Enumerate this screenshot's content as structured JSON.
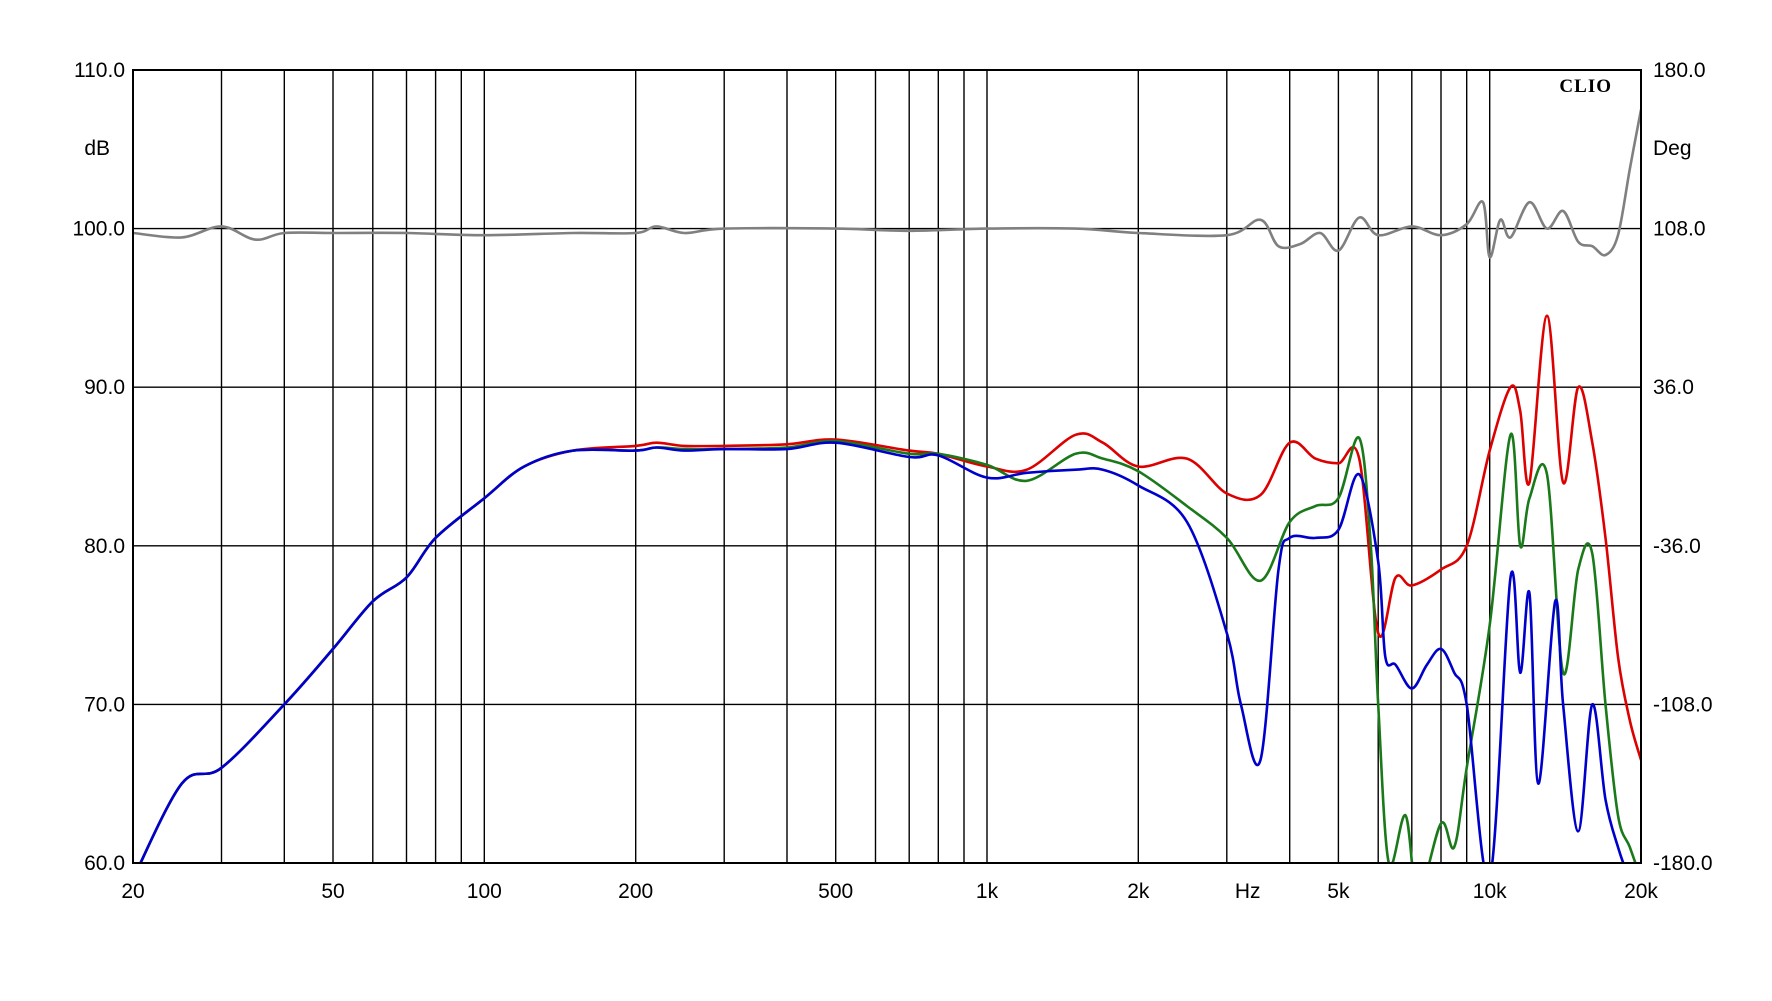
{
  "chart_data": {
    "type": "line",
    "brand": "CLIO",
    "x_unit": "Hz",
    "y_left_unit": "dB",
    "y_right_unit": "Deg",
    "x_scale": "log",
    "xlim": [
      20,
      20000
    ],
    "ylim_left": [
      60,
      110
    ],
    "ylim_right": [
      -180,
      180
    ],
    "grid": true,
    "x_gridlines": [
      30,
      40,
      50,
      60,
      70,
      80,
      90,
      100,
      200,
      300,
      400,
      500,
      600,
      700,
      800,
      900,
      1000,
      2000,
      3000,
      4000,
      5000,
      6000,
      7000,
      8000,
      9000,
      10000
    ],
    "x_ticks": [
      {
        "value": 20,
        "label": "20"
      },
      {
        "value": 50,
        "label": "50"
      },
      {
        "value": 100,
        "label": "100"
      },
      {
        "value": 200,
        "label": "200"
      },
      {
        "value": 500,
        "label": "500"
      },
      {
        "value": 1000,
        "label": "1k"
      },
      {
        "value": 2000,
        "label": "2k"
      },
      {
        "value": 3300,
        "label": "Hz"
      },
      {
        "value": 5000,
        "label": "5k"
      },
      {
        "value": 10000,
        "label": "10k"
      },
      {
        "value": 20000,
        "label": "20k"
      }
    ],
    "y_left_ticks": [
      {
        "value": 110,
        "label": "110.0"
      },
      {
        "value": 100,
        "label": "100.0"
      },
      {
        "value": 90,
        "label": "90.0"
      },
      {
        "value": 80,
        "label": "80.0"
      },
      {
        "value": 70,
        "label": "70.0"
      },
      {
        "value": 60,
        "label": "60.0"
      }
    ],
    "y_right_ticks": [
      {
        "value": 110,
        "label": "180.0"
      },
      {
        "value": 100,
        "label": "108.0"
      },
      {
        "value": 90,
        "label": "36.0"
      },
      {
        "value": 80,
        "label": "-36.0"
      },
      {
        "value": 70,
        "label": "-108.0"
      },
      {
        "value": 60,
        "label": "-180.0"
      }
    ],
    "series": [
      {
        "color": "#808080",
        "axis": "right_deg",
        "x": [
          20,
          25,
          30,
          35,
          40,
          50,
          70,
          100,
          150,
          200,
          220,
          250,
          300,
          500,
          700,
          1000,
          1500,
          2000,
          3000,
          3500,
          3800,
          4200,
          4600,
          5000,
          5500,
          6000,
          7000,
          8000,
          9000,
          9700,
          10000,
          10500,
          11000,
          12000,
          13000,
          14000,
          15000,
          16000,
          17000,
          18000,
          19000,
          20000
        ],
        "y": [
          106,
          104,
          109,
          103,
          106,
          106,
          106,
          105,
          106,
          106,
          109,
          106,
          108,
          108,
          107,
          108,
          108,
          106,
          105,
          112,
          100,
          101,
          106,
          98,
          113,
          105,
          109,
          105,
          110,
          120,
          95,
          112,
          104,
          120,
          108,
          116,
          102,
          100,
          96,
          105,
          135,
          162
        ]
      },
      {
        "color": "#dd0000",
        "axis": "left_db",
        "x": [
          20,
          25,
          30,
          40,
          50,
          60,
          70,
          80,
          100,
          120,
          150,
          200,
          220,
          250,
          300,
          400,
          500,
          700,
          800,
          1000,
          1200,
          1500,
          1700,
          2000,
          2500,
          3000,
          3500,
          4000,
          4500,
          5000,
          5500,
          6000,
          6500,
          7000,
          8000,
          9000,
          10000,
          11000,
          11500,
          12000,
          13000,
          14000,
          15000,
          16000,
          17000,
          18000,
          19000,
          20000
        ],
        "y": [
          59,
          65,
          66,
          70,
          73.5,
          76.5,
          78,
          80.5,
          83,
          85,
          86,
          86.3,
          86.5,
          86.3,
          86.3,
          86.4,
          86.7,
          86,
          85.8,
          85,
          84.8,
          87,
          86.5,
          85,
          85.5,
          83.3,
          83.2,
          86.5,
          85.5,
          85.2,
          85.5,
          74.5,
          78,
          77.5,
          78.5,
          80,
          86,
          90,
          88.5,
          84,
          94.5,
          84,
          90,
          86.5,
          80.5,
          73,
          69,
          66.5
        ]
      },
      {
        "color": "#1a7a1a",
        "axis": "left_db",
        "x": [
          20,
          25,
          30,
          40,
          50,
          60,
          70,
          80,
          100,
          120,
          150,
          200,
          220,
          250,
          300,
          400,
          500,
          700,
          800,
          1000,
          1200,
          1500,
          1700,
          2000,
          2500,
          3000,
          3500,
          4000,
          4500,
          5000,
          5500,
          5800,
          6000,
          6300,
          6800,
          7200,
          8000,
          8500,
          9000,
          10000,
          11000,
          11500,
          12000,
          13000,
          14000,
          15000,
          16000,
          17000,
          18000,
          19000,
          20000
        ],
        "y": [
          59,
          65,
          66,
          70,
          73.5,
          76.5,
          78,
          80.5,
          83,
          85,
          86,
          86,
          86.2,
          86.1,
          86.1,
          86.2,
          86.6,
          85.8,
          85.8,
          85.1,
          84.1,
          85.8,
          85.5,
          84.7,
          82.5,
          80.5,
          77.8,
          81.5,
          82.5,
          83,
          86.8,
          80,
          70,
          60,
          63,
          58,
          62.5,
          61,
          66,
          75,
          87,
          80,
          83,
          84.5,
          72,
          78.5,
          79.5,
          70,
          63,
          61,
          59
        ]
      },
      {
        "color": "#0000cc",
        "axis": "left_db",
        "x": [
          20,
          25,
          30,
          40,
          50,
          60,
          70,
          80,
          100,
          120,
          150,
          200,
          220,
          250,
          300,
          400,
          500,
          700,
          800,
          1000,
          1200,
          1500,
          1700,
          2000,
          2500,
          3000,
          3200,
          3500,
          3800,
          4000,
          4500,
          5000,
          5500,
          6000,
          6200,
          6500,
          7000,
          7500,
          8000,
          8500,
          9000,
          10000,
          11000,
          11500,
          12000,
          12500,
          13500,
          14000,
          15000,
          16000,
          17000,
          18000,
          19000,
          20000
        ],
        "y": [
          59,
          65,
          66,
          70,
          73.5,
          76.5,
          78,
          80.5,
          83,
          85,
          86,
          86,
          86.2,
          86,
          86.1,
          86.1,
          86.5,
          85.6,
          85.7,
          84.3,
          84.6,
          84.8,
          84.8,
          83.8,
          81.5,
          74.5,
          70,
          66.5,
          78.5,
          80.5,
          80.5,
          81,
          84.5,
          79,
          73,
          72.5,
          71,
          72.5,
          73.5,
          72,
          70,
          59,
          78,
          72,
          77,
          65,
          76.5,
          70,
          62,
          70,
          64,
          61,
          59,
          58
        ]
      }
    ]
  }
}
